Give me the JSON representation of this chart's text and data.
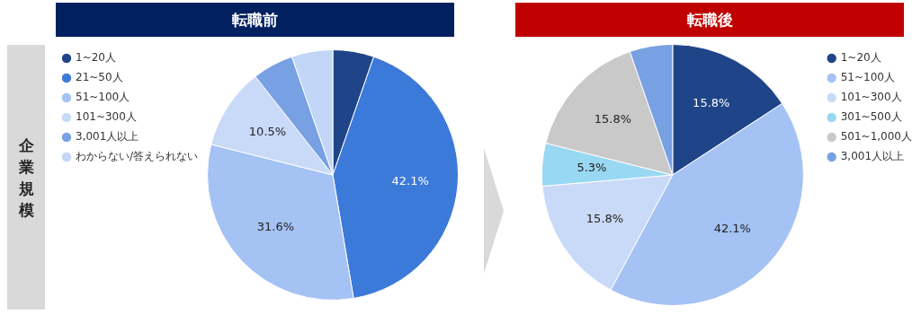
{
  "chart_data": [
    {
      "type": "pie",
      "title": "転職前",
      "ylabel": "企業規模",
      "legend": "left",
      "categories": [
        "1~20人",
        "21~50人",
        "51~100人",
        "101~300人",
        "3,001人以上",
        "わからない/答えられない"
      ],
      "values": [
        5.3,
        42.1,
        31.6,
        10.5,
        5.3,
        5.3
      ],
      "value_labels": [
        null,
        "42.1%",
        "31.6%",
        "10.5%",
        null,
        null
      ],
      "colors": [
        "#1f4488",
        "#3c7ad9",
        "#a4c2f4",
        "#c9daf8",
        "#78a1e3",
        "#c2d6f7"
      ]
    },
    {
      "type": "pie",
      "title": "転職後",
      "legend": "right",
      "categories": [
        "1~20人",
        "51~100人",
        "101~300人",
        "301~500人",
        "501~1,000人",
        "3,001人以上"
      ],
      "values": [
        15.8,
        42.1,
        15.8,
        5.3,
        15.8,
        5.3
      ],
      "value_labels": [
        "15.8%",
        "42.1%",
        "15.8%",
        "5.3%",
        "15.8%",
        null
      ],
      "colors": [
        "#1f4488",
        "#a4c2f4",
        "#c9daf8",
        "#99d8f2",
        "#c9c9c9",
        "#78a1e3"
      ]
    }
  ]
}
